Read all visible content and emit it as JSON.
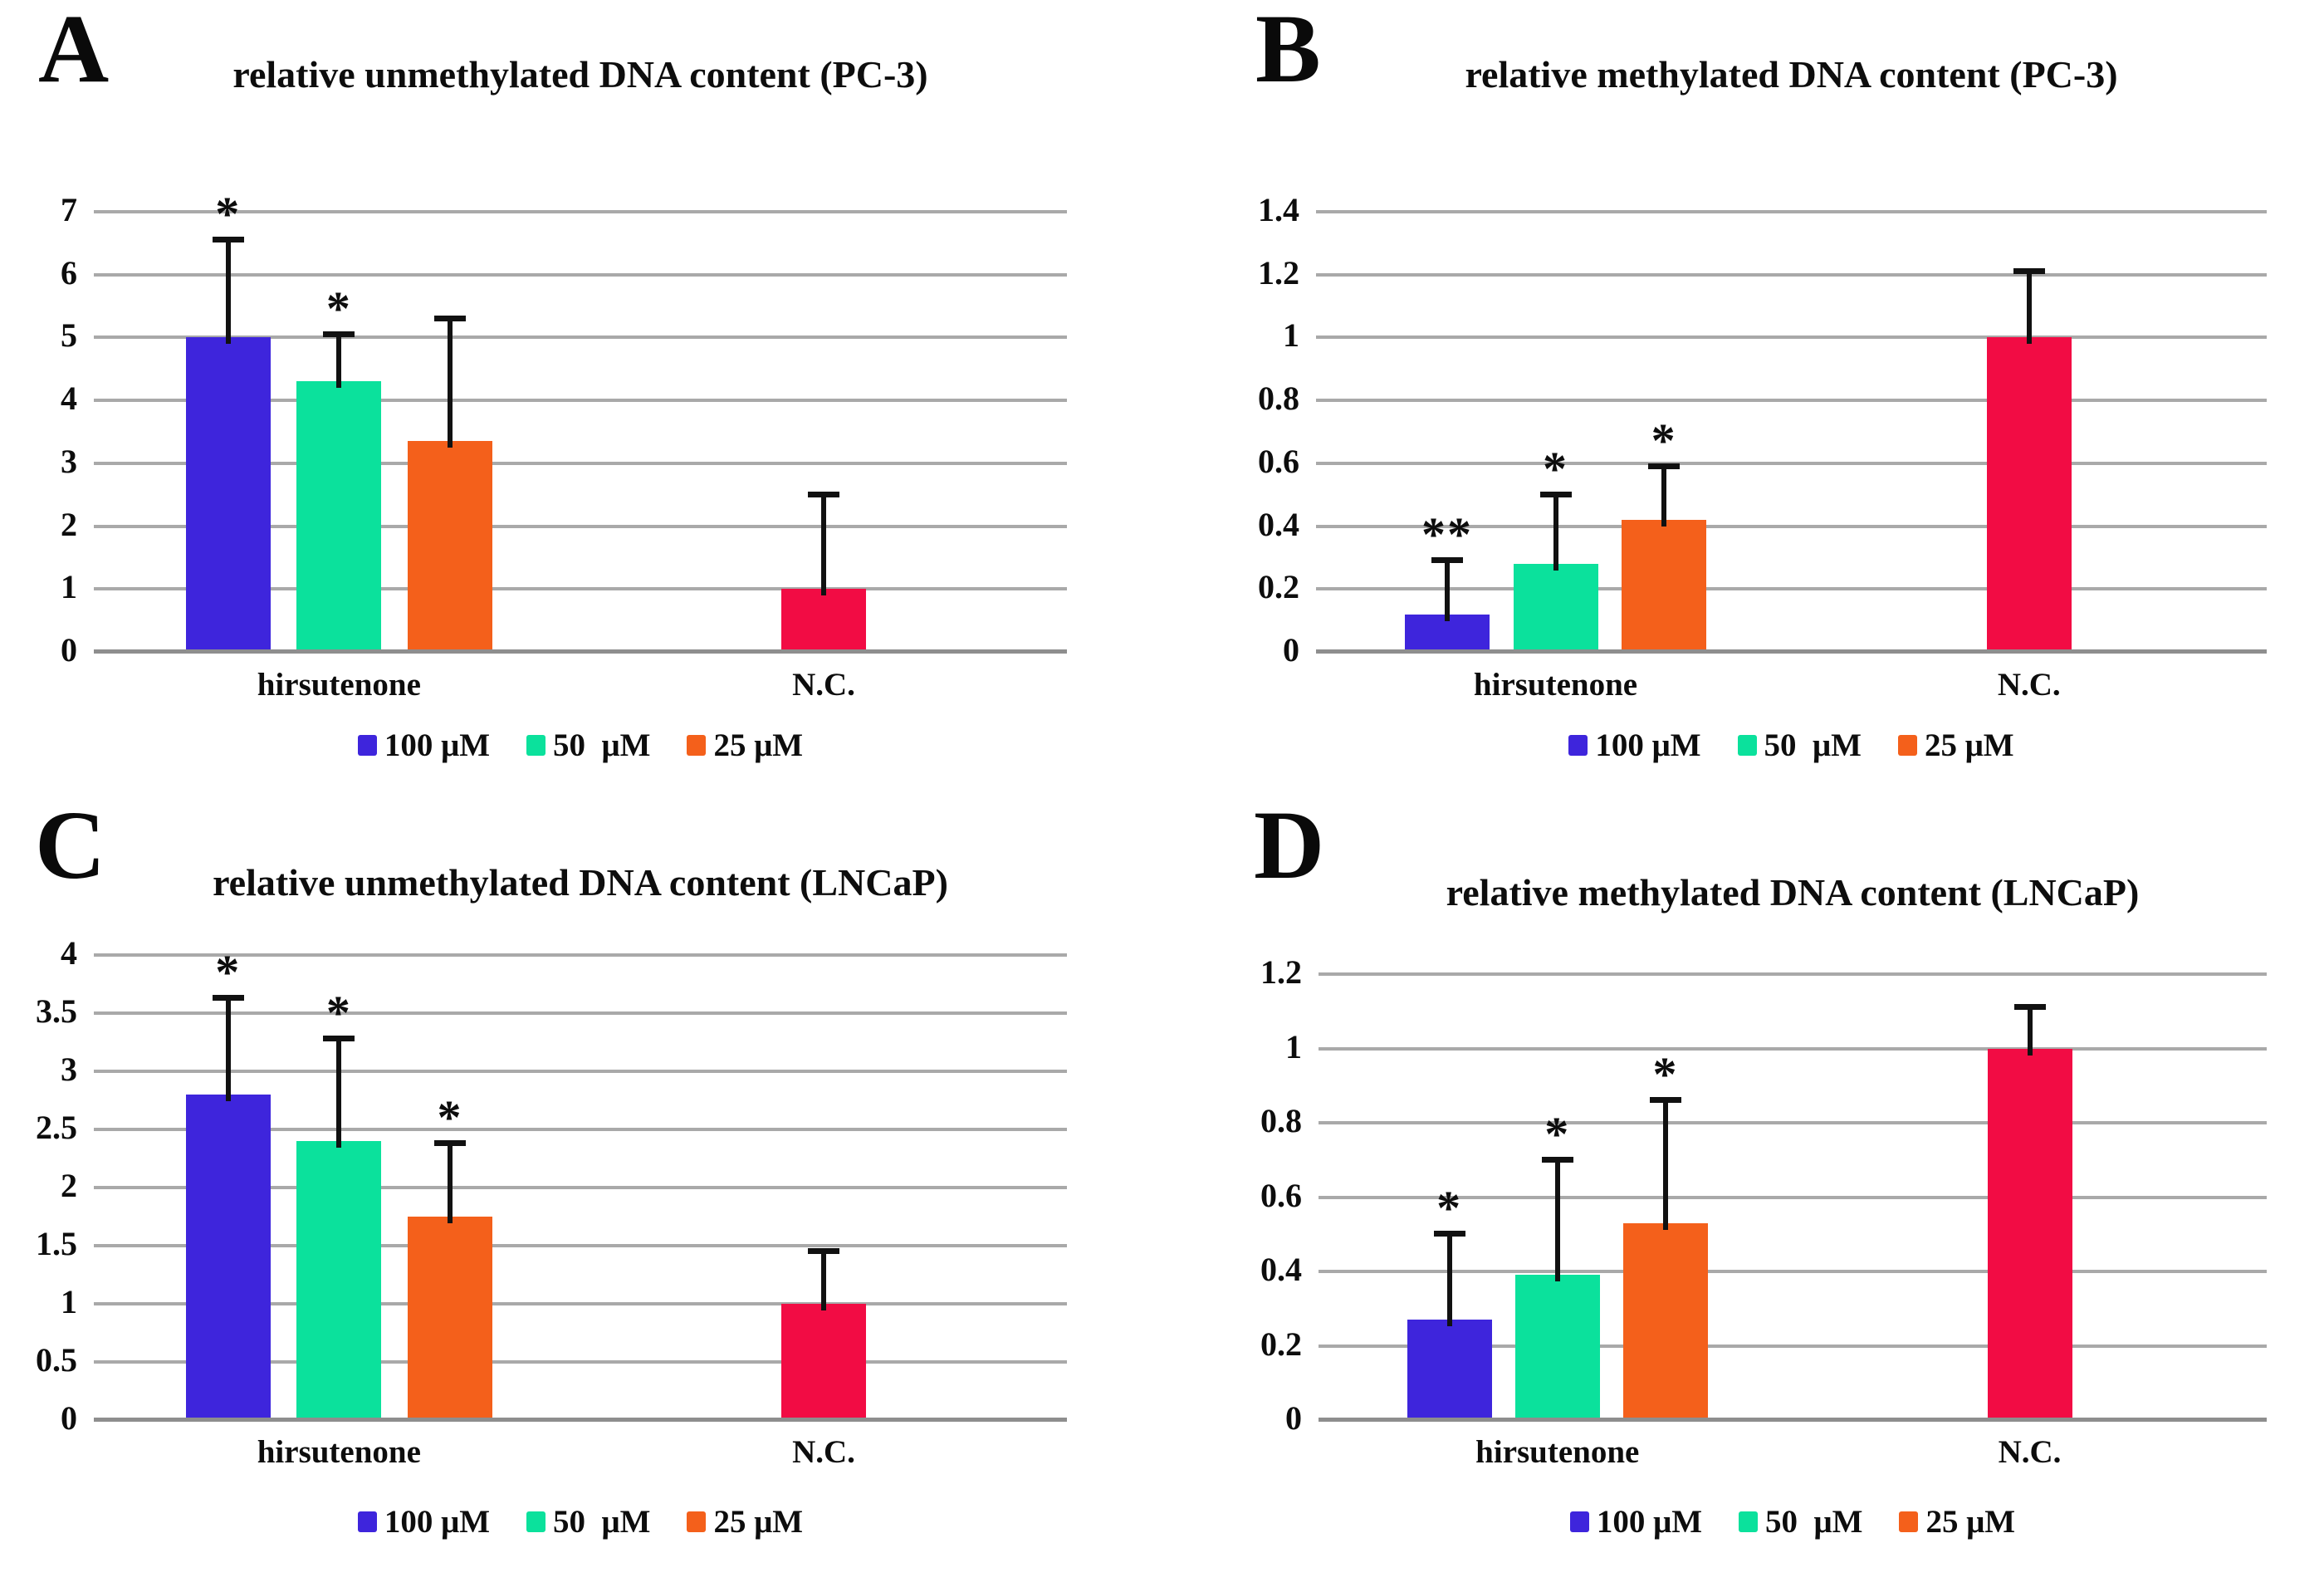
{
  "figure": {
    "description": "Four-panel bar chart figure of relative unmethylated and methylated DNA content in PC-3 and LNCaP cells after hirsutenone treatment"
  },
  "colors": {
    "series": {
      "100 μM": "#3e25dc",
      "50 μM": "#0be19c",
      "25 μM": "#f4601b",
      "N.C.": "#f20c44"
    },
    "gridline": "#a9a9a9",
    "axis_line": "#8e8e8e",
    "error_bar": "#111111",
    "text": "#0d0d0d",
    "background": "#ffffff"
  },
  "legend": {
    "items": [
      {
        "label": "100 μM",
        "color": "#3e25dc"
      },
      {
        "label": "50  μM",
        "color": "#0be19c"
      },
      {
        "label": "25 μM",
        "color": "#f4601b"
      }
    ]
  },
  "chart_data": [
    {
      "type": "bar",
      "panel_letter": "A",
      "title": "relative unmethylated DNA content (PC-3)",
      "categories": [
        "hirsutenone",
        "N.C."
      ],
      "ylim": [
        0,
        7
      ],
      "yticks": [
        "0",
        "1",
        "2",
        "3",
        "4",
        "5",
        "6",
        "7"
      ],
      "grid": true,
      "legend_position": "bottom",
      "bars": [
        {
          "group": "hirsutenone",
          "series": "100 μM",
          "value": 5.0,
          "error_top": 6.55,
          "significance": "*"
        },
        {
          "group": "hirsutenone",
          "series": "50 μM",
          "value": 4.3,
          "error_top": 5.05,
          "significance": "*"
        },
        {
          "group": "hirsutenone",
          "series": "25 μM",
          "value": 3.35,
          "error_top": 5.3,
          "significance": ""
        },
        {
          "group": "N.C.",
          "series": "N.C.",
          "value": 1.0,
          "error_top": 2.5,
          "significance": ""
        }
      ]
    },
    {
      "type": "bar",
      "panel_letter": "B",
      "title": "relative methylated DNA content (PC-3)",
      "categories": [
        "hirsutenone",
        "N.C."
      ],
      "ylim": [
        0,
        1.4
      ],
      "yticks": [
        "0",
        "0.2",
        "0.4",
        "0.6",
        "0.8",
        "1",
        "1.2",
        "1.4"
      ],
      "grid": true,
      "legend_position": "bottom",
      "bars": [
        {
          "group": "hirsutenone",
          "series": "100 μM",
          "value": 0.12,
          "error_top": 0.29,
          "significance": "**"
        },
        {
          "group": "hirsutenone",
          "series": "50 μM",
          "value": 0.28,
          "error_top": 0.5,
          "significance": "*"
        },
        {
          "group": "hirsutenone",
          "series": "25 μM",
          "value": 0.42,
          "error_top": 0.59,
          "significance": "*"
        },
        {
          "group": "N.C.",
          "series": "N.C.",
          "value": 1.0,
          "error_top": 1.21,
          "significance": ""
        }
      ]
    },
    {
      "type": "bar",
      "panel_letter": "C",
      "title": "relative unmethylated DNA content (LNCaP)",
      "categories": [
        "hirsutenone",
        "N.C."
      ],
      "ylim": [
        0,
        4
      ],
      "yticks": [
        "0",
        "0.5",
        "1",
        "1.5",
        "2",
        "2.5",
        "3",
        "3.5",
        "4"
      ],
      "grid": true,
      "legend_position": "bottom",
      "bars": [
        {
          "group": "hirsutenone",
          "series": "100 μM",
          "value": 2.8,
          "error_top": 3.63,
          "significance": "*"
        },
        {
          "group": "hirsutenone",
          "series": "50 μM",
          "value": 2.4,
          "error_top": 3.28,
          "significance": "*"
        },
        {
          "group": "hirsutenone",
          "series": "25 μM",
          "value": 1.75,
          "error_top": 2.38,
          "significance": "*"
        },
        {
          "group": "N.C.",
          "series": "N.C.",
          "value": 1.0,
          "error_top": 1.45,
          "significance": ""
        }
      ]
    },
    {
      "type": "bar",
      "panel_letter": "D",
      "title": "relative methylated DNA content (LNCaP)",
      "categories": [
        "hirsutenone",
        "N.C."
      ],
      "ylim": [
        0,
        1.2
      ],
      "yticks": [
        "0",
        "0.2",
        "0.4",
        "0.6",
        "0.8",
        "1",
        "1.2"
      ],
      "grid": true,
      "legend_position": "bottom",
      "bars": [
        {
          "group": "hirsutenone",
          "series": "100 μM",
          "value": 0.27,
          "error_top": 0.5,
          "significance": "*"
        },
        {
          "group": "hirsutenone",
          "series": "50 μM",
          "value": 0.39,
          "error_top": 0.7,
          "significance": "*"
        },
        {
          "group": "hirsutenone",
          "series": "25 μM",
          "value": 0.53,
          "error_top": 0.86,
          "significance": "*"
        },
        {
          "group": "N.C.",
          "series": "N.C.",
          "value": 1.0,
          "error_top": 1.11,
          "significance": ""
        }
      ]
    }
  ]
}
